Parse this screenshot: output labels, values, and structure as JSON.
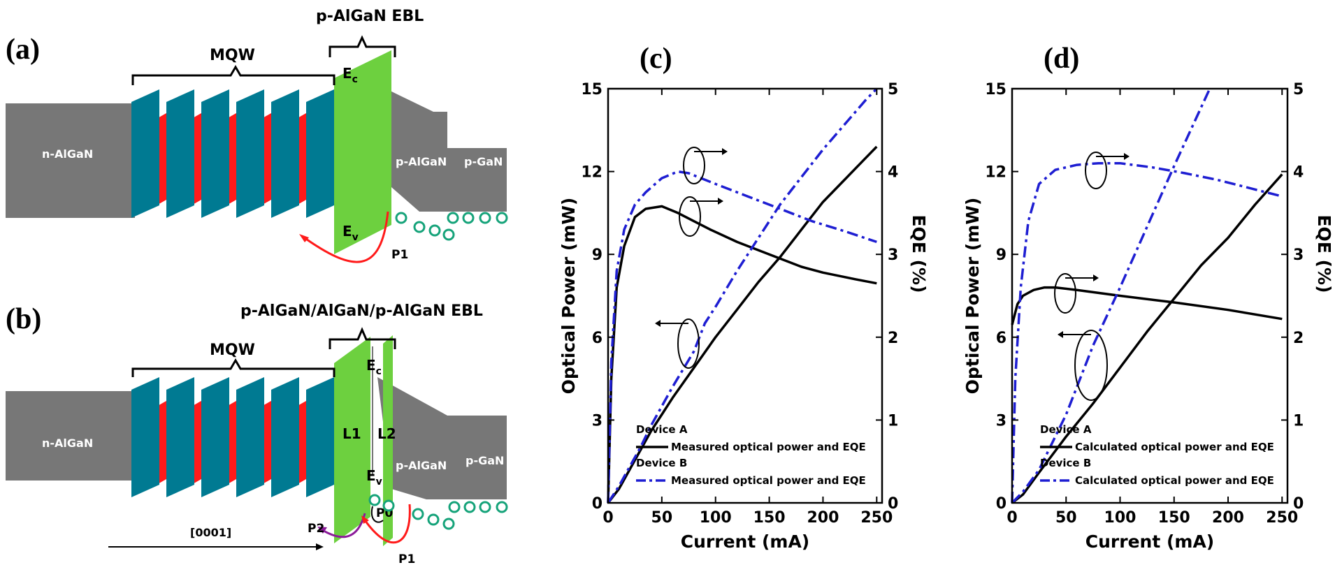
{
  "panels": {
    "a": {
      "label": "(a)",
      "ebl_label": "p-AlGaN EBL",
      "mqw_label": "MQW",
      "n_label": "n-AlGaN",
      "p_algan_label": "p-AlGaN",
      "p_gan_label": "p-GaN",
      "ec_base": "E",
      "ec_sub": "c",
      "ev_base": "E",
      "ev_sub": "v",
      "p1_label": "P1"
    },
    "b": {
      "label": "(b)",
      "ebl_label": "p-AlGaN/AlGaN/p-AlGaN EBL",
      "mqw_label": "MQW",
      "n_label": "n-AlGaN",
      "p_algan_label": "p-AlGaN",
      "p_gan_label": "p-GaN",
      "ec_base": "E",
      "ec_sub": "c",
      "ev_base": "E",
      "ev_sub": "v",
      "l1_label": "L1",
      "l2_label": "L2",
      "p0_label": "P0",
      "p1_label": "P1",
      "p2_label": "P2",
      "direction_label": "[0001]"
    }
  },
  "colors": {
    "barrier": "#007a92",
    "well": "#ff1a1a",
    "ebl": "#6dd03f",
    "bulk": "#777777",
    "hole": "#16a37a",
    "arrow_red": "#ff1a1a",
    "arrow_purple": "#8b1a99",
    "series_a": "#000000",
    "series_b": "#1e1ed2"
  },
  "chart_data": [
    {
      "type": "line",
      "panel_label": "(c)",
      "xlabel": "Current (mA)",
      "ylabel": "Optical Power (mW)",
      "y2label": "EQE (%)",
      "xlim": [
        0,
        255
      ],
      "ylim": [
        0,
        15
      ],
      "y2lim": [
        0,
        5
      ],
      "xticks": [
        0,
        50,
        100,
        150,
        200,
        250
      ],
      "yticks": [
        0,
        3,
        6,
        9,
        12,
        15
      ],
      "y2ticks": [
        0,
        1,
        2,
        3,
        4,
        5
      ],
      "legend_location": "bottom-right",
      "legend": [
        {
          "group": "Device A",
          "label": "Measured optical power and EQE"
        },
        {
          "group": "Device B",
          "label": "Measured optical power and EQE"
        }
      ],
      "series": [
        {
          "device": "A",
          "axis": "left",
          "style": "solid",
          "x": [
            0,
            10,
            20,
            30,
            40,
            50,
            60,
            80,
            100,
            120,
            140,
            160,
            180,
            200,
            220,
            240,
            250
          ],
          "y": [
            0,
            0.5,
            1.2,
            1.9,
            2.6,
            3.2,
            3.8,
            4.9,
            6.0,
            7.0,
            8.0,
            8.9,
            9.9,
            10.9,
            11.7,
            12.5,
            12.9
          ]
        },
        {
          "device": "A",
          "axis": "right",
          "style": "solid",
          "x": [
            0,
            3,
            8,
            15,
            25,
            35,
            50,
            65,
            80,
            95,
            120,
            150,
            180,
            200,
            230,
            250
          ],
          "y": [
            0,
            1.5,
            2.6,
            3.1,
            3.45,
            3.55,
            3.58,
            3.5,
            3.4,
            3.3,
            3.15,
            3.0,
            2.85,
            2.78,
            2.7,
            2.65
          ]
        },
        {
          "device": "B",
          "axis": "left",
          "style": "dashdot",
          "x": [
            0,
            10,
            20,
            30,
            40,
            50,
            60,
            80,
            90,
            100,
            120,
            140,
            160,
            180,
            200,
            220,
            240,
            250
          ],
          "y": [
            0,
            0.6,
            1.3,
            2.0,
            2.8,
            3.5,
            4.2,
            5.5,
            6.5,
            7.1,
            8.4,
            9.6,
            10.8,
            11.8,
            12.8,
            13.7,
            14.6,
            15.0
          ]
        },
        {
          "device": "B",
          "axis": "right",
          "style": "dashdot",
          "x": [
            0,
            3,
            8,
            15,
            25,
            35,
            50,
            65,
            75,
            100,
            130,
            160,
            190,
            220,
            250
          ],
          "y": [
            0,
            1.7,
            2.8,
            3.3,
            3.6,
            3.75,
            3.92,
            4.0,
            3.98,
            3.85,
            3.7,
            3.55,
            3.4,
            3.28,
            3.15
          ]
        }
      ]
    },
    {
      "type": "line",
      "panel_label": "(d)",
      "xlabel": "Current (mA)",
      "ylabel": "Optical Power (mW)",
      "y2label": "EQE (%)",
      "xlim": [
        0,
        255
      ],
      "ylim": [
        0,
        15
      ],
      "y2lim": [
        0,
        5
      ],
      "xticks": [
        0,
        50,
        100,
        150,
        200,
        250
      ],
      "yticks": [
        0,
        3,
        6,
        9,
        12,
        15
      ],
      "y2ticks": [
        0,
        1,
        2,
        3,
        4,
        5
      ],
      "legend_location": "bottom-right",
      "legend": [
        {
          "group": "Device A",
          "label": "Calculated optical power and EQE"
        },
        {
          "group": "Device B",
          "label": "Calculated optical power and EQE"
        }
      ],
      "series": [
        {
          "device": "A",
          "axis": "left",
          "style": "solid",
          "x": [
            0,
            10,
            25,
            50,
            75,
            100,
            125,
            150,
            175,
            200,
            225,
            250
          ],
          "y": [
            0,
            0.3,
            1.1,
            2.4,
            3.6,
            4.9,
            6.2,
            7.4,
            8.6,
            9.6,
            10.8,
            11.9
          ]
        },
        {
          "device": "A",
          "axis": "right",
          "style": "solid",
          "x": [
            0,
            2,
            5,
            10,
            20,
            30,
            40,
            60,
            100,
            150,
            200,
            250
          ],
          "y": [
            2.15,
            2.25,
            2.4,
            2.5,
            2.57,
            2.6,
            2.6,
            2.57,
            2.5,
            2.42,
            2.33,
            2.22
          ]
        },
        {
          "device": "B",
          "axis": "left",
          "style": "dashdot",
          "x": [
            0,
            10,
            25,
            50,
            75,
            100,
            125,
            150,
            183
          ],
          "y": [
            0,
            0.4,
            1.2,
            3.2,
            5.7,
            7.8,
            10.0,
            12.2,
            15.0
          ]
        },
        {
          "device": "B",
          "axis": "right",
          "style": "dashdot",
          "x": [
            0,
            3,
            8,
            15,
            25,
            40,
            60,
            80,
            100,
            130,
            160,
            190,
            220,
            250
          ],
          "y": [
            0,
            1.5,
            2.6,
            3.4,
            3.85,
            4.02,
            4.08,
            4.1,
            4.1,
            4.05,
            3.98,
            3.9,
            3.8,
            3.7
          ]
        }
      ]
    }
  ]
}
